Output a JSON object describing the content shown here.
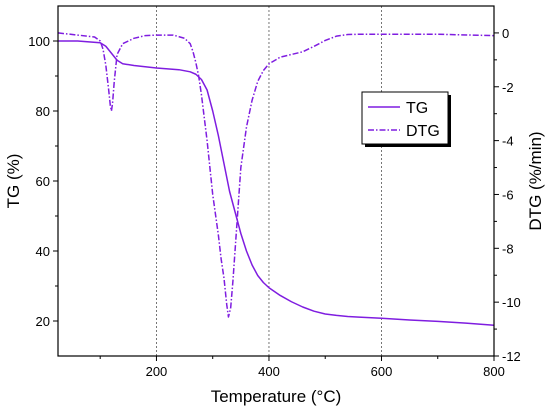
{
  "chart_data": {
    "type": "line",
    "xlabel": "Temperature (°C)",
    "ylabel_left": "TG (%)",
    "ylabel_right": "DTG (%/min)",
    "xlim": [
      25,
      800
    ],
    "ylim_left": [
      10,
      110
    ],
    "ylim_right": [
      -12,
      1
    ],
    "x_ticks": [
      200,
      400,
      600,
      800
    ],
    "y_left_ticks": [
      20,
      40,
      60,
      80,
      100
    ],
    "y_right_ticks": [
      0,
      -2,
      -4,
      -6,
      -8,
      -10,
      -12
    ],
    "vertical_gridlines": [
      200,
      400,
      600
    ],
    "legend": {
      "position": "upper-right-inner",
      "entries": [
        "TG",
        "DTG"
      ]
    },
    "series": [
      {
        "name": "TG",
        "axis": "left",
        "style": "solid",
        "color": "#7F1DE0",
        "x": [
          25,
          60,
          100,
          110,
          120,
          130,
          140,
          160,
          200,
          240,
          260,
          270,
          280,
          290,
          300,
          310,
          320,
          330,
          340,
          350,
          360,
          370,
          380,
          390,
          400,
          420,
          440,
          460,
          480,
          500,
          520,
          540,
          560,
          600,
          650,
          700,
          750,
          800
        ],
        "values": [
          100,
          100,
          99.5,
          98.5,
          96.5,
          94.5,
          93.5,
          93,
          92.3,
          91.8,
          91.2,
          90.5,
          89,
          86,
          80,
          73,
          65,
          57,
          51,
          45,
          40,
          36,
          33,
          31,
          29.5,
          27.3,
          25.5,
          24,
          22.8,
          22,
          21.6,
          21.3,
          21.1,
          20.8,
          20.3,
          19.9,
          19.4,
          18.8
        ]
      },
      {
        "name": "DTG",
        "axis": "right",
        "style": "dash-dot",
        "color": "#7F1DE0",
        "x": [
          25,
          60,
          90,
          100,
          105,
          110,
          115,
          118,
          120,
          122,
          125,
          130,
          140,
          150,
          160,
          180,
          200,
          230,
          250,
          260,
          265,
          270,
          275,
          280,
          290,
          300,
          310,
          315,
          320,
          325,
          328,
          332,
          336,
          340,
          345,
          350,
          360,
          370,
          380,
          390,
          400,
          420,
          440,
          460,
          480,
          500,
          520,
          540,
          560,
          600,
          700,
          800
        ],
        "values": [
          0,
          -0.08,
          -0.15,
          -0.3,
          -0.6,
          -1.2,
          -2.1,
          -2.7,
          -2.9,
          -2.6,
          -1.8,
          -0.8,
          -0.4,
          -0.3,
          -0.2,
          -0.1,
          -0.08,
          -0.08,
          -0.2,
          -0.4,
          -0.7,
          -1.1,
          -1.6,
          -2.3,
          -4,
          -6,
          -7.5,
          -8.4,
          -9.1,
          -10.1,
          -10.55,
          -10.2,
          -9.2,
          -8,
          -6.5,
          -5,
          -3.5,
          -2.5,
          -1.8,
          -1.4,
          -1.15,
          -0.9,
          -0.8,
          -0.7,
          -0.5,
          -0.28,
          -0.12,
          -0.06,
          -0.05,
          -0.05,
          -0.05,
          -0.1
        ]
      }
    ]
  }
}
